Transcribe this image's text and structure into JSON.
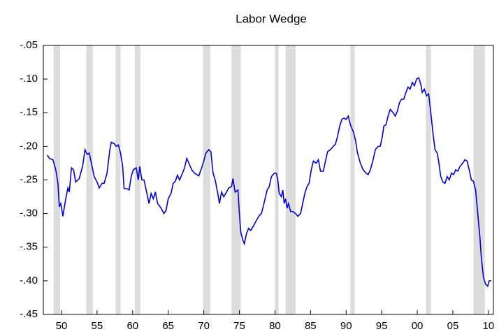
{
  "chart_data": {
    "type": "line",
    "title": "Labor Wedge",
    "xlim": [
      1947.45,
      2010.7
    ],
    "ylim": [
      -0.45,
      -0.05
    ],
    "xticks": [
      {
        "value": 1950,
        "label": "50"
      },
      {
        "value": 1955,
        "label": "55"
      },
      {
        "value": 1960,
        "label": "60"
      },
      {
        "value": 1965,
        "label": "65"
      },
      {
        "value": 1970,
        "label": "70"
      },
      {
        "value": 1975,
        "label": "75"
      },
      {
        "value": 1980,
        "label": "80"
      },
      {
        "value": 1985,
        "label": "85"
      },
      {
        "value": 1990,
        "label": "90"
      },
      {
        "value": 1995,
        "label": "95"
      },
      {
        "value": 2000,
        "label": "00"
      },
      {
        "value": 2005,
        "label": "05"
      },
      {
        "value": 2010,
        "label": "10"
      }
    ],
    "yticks": [
      {
        "value": -0.05,
        "label": "-.05"
      },
      {
        "value": -0.1,
        "label": "-.10"
      },
      {
        "value": -0.15,
        "label": "-.15"
      },
      {
        "value": -0.2,
        "label": "-.20"
      },
      {
        "value": -0.25,
        "label": "-.25"
      },
      {
        "value": -0.3,
        "label": "-.30"
      },
      {
        "value": -0.35,
        "label": "-.35"
      },
      {
        "value": -0.4,
        "label": "-.40"
      },
      {
        "value": -0.45,
        "label": "-.45"
      }
    ],
    "recessions": [
      [
        1948.9,
        1949.8
      ],
      [
        1953.5,
        1954.4
      ],
      [
        1957.6,
        1958.3
      ],
      [
        1960.3,
        1961.1
      ],
      [
        1969.9,
        1970.9
      ],
      [
        1973.9,
        1975.2
      ],
      [
        1980.0,
        1980.5
      ],
      [
        1981.5,
        1982.9
      ],
      [
        1990.6,
        1991.2
      ],
      [
        2001.2,
        2001.9
      ],
      [
        2007.9,
        2009.5
      ]
    ],
    "recession_color": "#dcdcdc",
    "series": [
      {
        "color": "#0000dd",
        "x": [
          1948.0,
          1948.3,
          1948.8,
          1949.2,
          1949.5,
          1949.7,
          1949.9,
          1950.2,
          1950.6,
          1950.9,
          1951.1,
          1951.4,
          1951.7,
          1952.0,
          1952.5,
          1953.0,
          1953.3,
          1953.6,
          1953.9,
          1954.3,
          1954.6,
          1955.0,
          1955.3,
          1955.7,
          1956.0,
          1956.4,
          1956.8,
          1957.0,
          1957.4,
          1957.7,
          1958.0,
          1958.3,
          1958.6,
          1958.8,
          1959.2,
          1959.5,
          1959.8,
          1960.1,
          1960.5,
          1960.8,
          1961.0,
          1961.3,
          1961.6,
          1962.0,
          1962.3,
          1962.6,
          1962.9,
          1963.2,
          1963.5,
          1964.0,
          1964.4,
          1964.7,
          1965.0,
          1965.4,
          1965.7,
          1966.0,
          1966.3,
          1966.6,
          1967.0,
          1967.3,
          1967.6,
          1967.9,
          1968.3,
          1968.7,
          1969.0,
          1969.3,
          1969.7,
          1970.0,
          1970.3,
          1970.7,
          1971.0,
          1971.3,
          1971.6,
          1972.0,
          1972.2,
          1972.5,
          1972.8,
          1973.2,
          1973.5,
          1973.9,
          1974.1,
          1974.4,
          1974.8,
          1975.0,
          1975.2,
          1975.5,
          1975.7,
          1976.0,
          1976.3,
          1976.6,
          1977.0,
          1977.4,
          1977.8,
          1978.1,
          1978.5,
          1978.9,
          1979.2,
          1979.5,
          1979.9,
          1980.2,
          1980.4,
          1980.6,
          1980.9,
          1981.1,
          1981.3,
          1981.5,
          1981.7,
          1981.9,
          1982.2,
          1982.5,
          1982.9,
          1983.2,
          1983.6,
          1983.9,
          1984.2,
          1984.5,
          1984.8,
          1985.1,
          1985.4,
          1985.8,
          1986.1,
          1986.4,
          1986.8,
          1987.1,
          1987.4,
          1987.8,
          1988.2,
          1988.5,
          1988.8,
          1989.1,
          1989.4,
          1989.7,
          1990.0,
          1990.3,
          1990.6,
          1991.0,
          1991.3,
          1991.6,
          1992.0,
          1992.4,
          1992.8,
          1993.1,
          1993.4,
          1993.8,
          1994.1,
          1994.5,
          1994.8,
          1995.1,
          1995.3,
          1995.6,
          1995.9,
          1996.2,
          1996.6,
          1996.9,
          1997.2,
          1997.5,
          1997.8,
          1998.1,
          1998.4,
          1998.7,
          1999.0,
          1999.3,
          1999.6,
          1999.9,
          2000.2,
          2000.5,
          2000.7,
          2001.0,
          2001.3,
          2001.6,
          2001.9,
          2002.2,
          2002.5,
          2002.8,
          2003.0,
          2003.3,
          2003.6,
          2003.9,
          2004.2,
          2004.5,
          2004.8,
          2005.1,
          2005.4,
          2005.7,
          2006.0,
          2006.4,
          2006.7,
          2007.0,
          2007.3,
          2007.6,
          2007.9,
          2008.2,
          2008.5,
          2008.8,
          2009.0,
          2009.3,
          2009.6,
          2009.9,
          2010.1,
          2010.4
        ],
        "values": [
          -0.213,
          -0.218,
          -0.22,
          -0.235,
          -0.255,
          -0.29,
          -0.285,
          -0.304,
          -0.278,
          -0.262,
          -0.268,
          -0.232,
          -0.235,
          -0.253,
          -0.248,
          -0.228,
          -0.205,
          -0.212,
          -0.21,
          -0.23,
          -0.245,
          -0.253,
          -0.262,
          -0.255,
          -0.255,
          -0.24,
          -0.205,
          -0.194,
          -0.196,
          -0.2,
          -0.198,
          -0.21,
          -0.23,
          -0.263,
          -0.263,
          -0.265,
          -0.245,
          -0.235,
          -0.232,
          -0.25,
          -0.23,
          -0.25,
          -0.25,
          -0.27,
          -0.285,
          -0.27,
          -0.278,
          -0.268,
          -0.285,
          -0.292,
          -0.3,
          -0.295,
          -0.278,
          -0.27,
          -0.255,
          -0.252,
          -0.243,
          -0.25,
          -0.24,
          -0.232,
          -0.218,
          -0.225,
          -0.235,
          -0.24,
          -0.242,
          -0.244,
          -0.232,
          -0.222,
          -0.21,
          -0.205,
          -0.208,
          -0.24,
          -0.25,
          -0.272,
          -0.285,
          -0.268,
          -0.275,
          -0.268,
          -0.262,
          -0.26,
          -0.248,
          -0.268,
          -0.265,
          -0.3,
          -0.328,
          -0.34,
          -0.345,
          -0.33,
          -0.322,
          -0.325,
          -0.318,
          -0.31,
          -0.303,
          -0.3,
          -0.283,
          -0.265,
          -0.26,
          -0.245,
          -0.24,
          -0.24,
          -0.25,
          -0.27,
          -0.275,
          -0.265,
          -0.285,
          -0.278,
          -0.292,
          -0.285,
          -0.297,
          -0.297,
          -0.3,
          -0.304,
          -0.3,
          -0.285,
          -0.27,
          -0.26,
          -0.255,
          -0.235,
          -0.222,
          -0.225,
          -0.22,
          -0.237,
          -0.237,
          -0.222,
          -0.208,
          -0.205,
          -0.2,
          -0.197,
          -0.185,
          -0.17,
          -0.16,
          -0.158,
          -0.16,
          -0.155,
          -0.168,
          -0.178,
          -0.19,
          -0.21,
          -0.225,
          -0.235,
          -0.24,
          -0.242,
          -0.235,
          -0.22,
          -0.205,
          -0.2,
          -0.2,
          -0.185,
          -0.17,
          -0.168,
          -0.155,
          -0.145,
          -0.15,
          -0.155,
          -0.148,
          -0.135,
          -0.13,
          -0.13,
          -0.12,
          -0.112,
          -0.115,
          -0.105,
          -0.11,
          -0.1,
          -0.098,
          -0.108,
          -0.12,
          -0.115,
          -0.125,
          -0.122,
          -0.15,
          -0.18,
          -0.205,
          -0.21,
          -0.222,
          -0.245,
          -0.253,
          -0.255,
          -0.245,
          -0.25,
          -0.24,
          -0.242,
          -0.235,
          -0.237,
          -0.23,
          -0.225,
          -0.22,
          -0.222,
          -0.235,
          -0.25,
          -0.252,
          -0.265,
          -0.3,
          -0.335,
          -0.365,
          -0.395,
          -0.405,
          -0.408,
          -0.4,
          -0.4
        ]
      }
    ]
  }
}
